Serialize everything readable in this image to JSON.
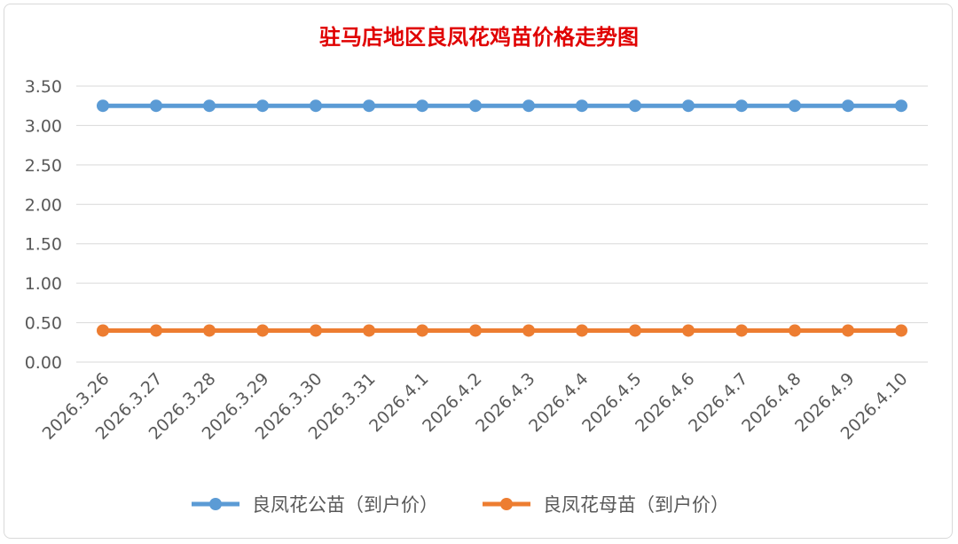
{
  "chart_data": {
    "type": "line",
    "title": "驻马店地区良凤花鸡苗价格走势图",
    "categories": [
      "2026.3.26",
      "2026.3.27",
      "2026.3.28",
      "2026.3.29",
      "2026.3.30",
      "2026.3.31",
      "2026.4.1",
      "2026.4.2",
      "2026.4.3",
      "2026.4.4",
      "2026.4.5",
      "2026.4.6",
      "2026.4.7",
      "2026.4.8",
      "2026.4.9",
      "2026.4.10"
    ],
    "yticks": [
      "0.00",
      "0.50",
      "1.00",
      "1.50",
      "2.00",
      "2.50",
      "3.00",
      "3.50"
    ],
    "ylim": [
      0,
      3.5
    ],
    "grid": true,
    "legend_position": "bottom",
    "series": [
      {
        "name": "良凤花公苗（到户价）",
        "color": "#5b9bd5",
        "values": [
          3.25,
          3.25,
          3.25,
          3.25,
          3.25,
          3.25,
          3.25,
          3.25,
          3.25,
          3.25,
          3.25,
          3.25,
          3.25,
          3.25,
          3.25,
          3.25
        ]
      },
      {
        "name": "良凤花母苗（到户价）",
        "color": "#ed7d31",
        "values": [
          0.4,
          0.4,
          0.4,
          0.4,
          0.4,
          0.4,
          0.4,
          0.4,
          0.4,
          0.4,
          0.4,
          0.4,
          0.4,
          0.4,
          0.4,
          0.4
        ]
      }
    ]
  }
}
